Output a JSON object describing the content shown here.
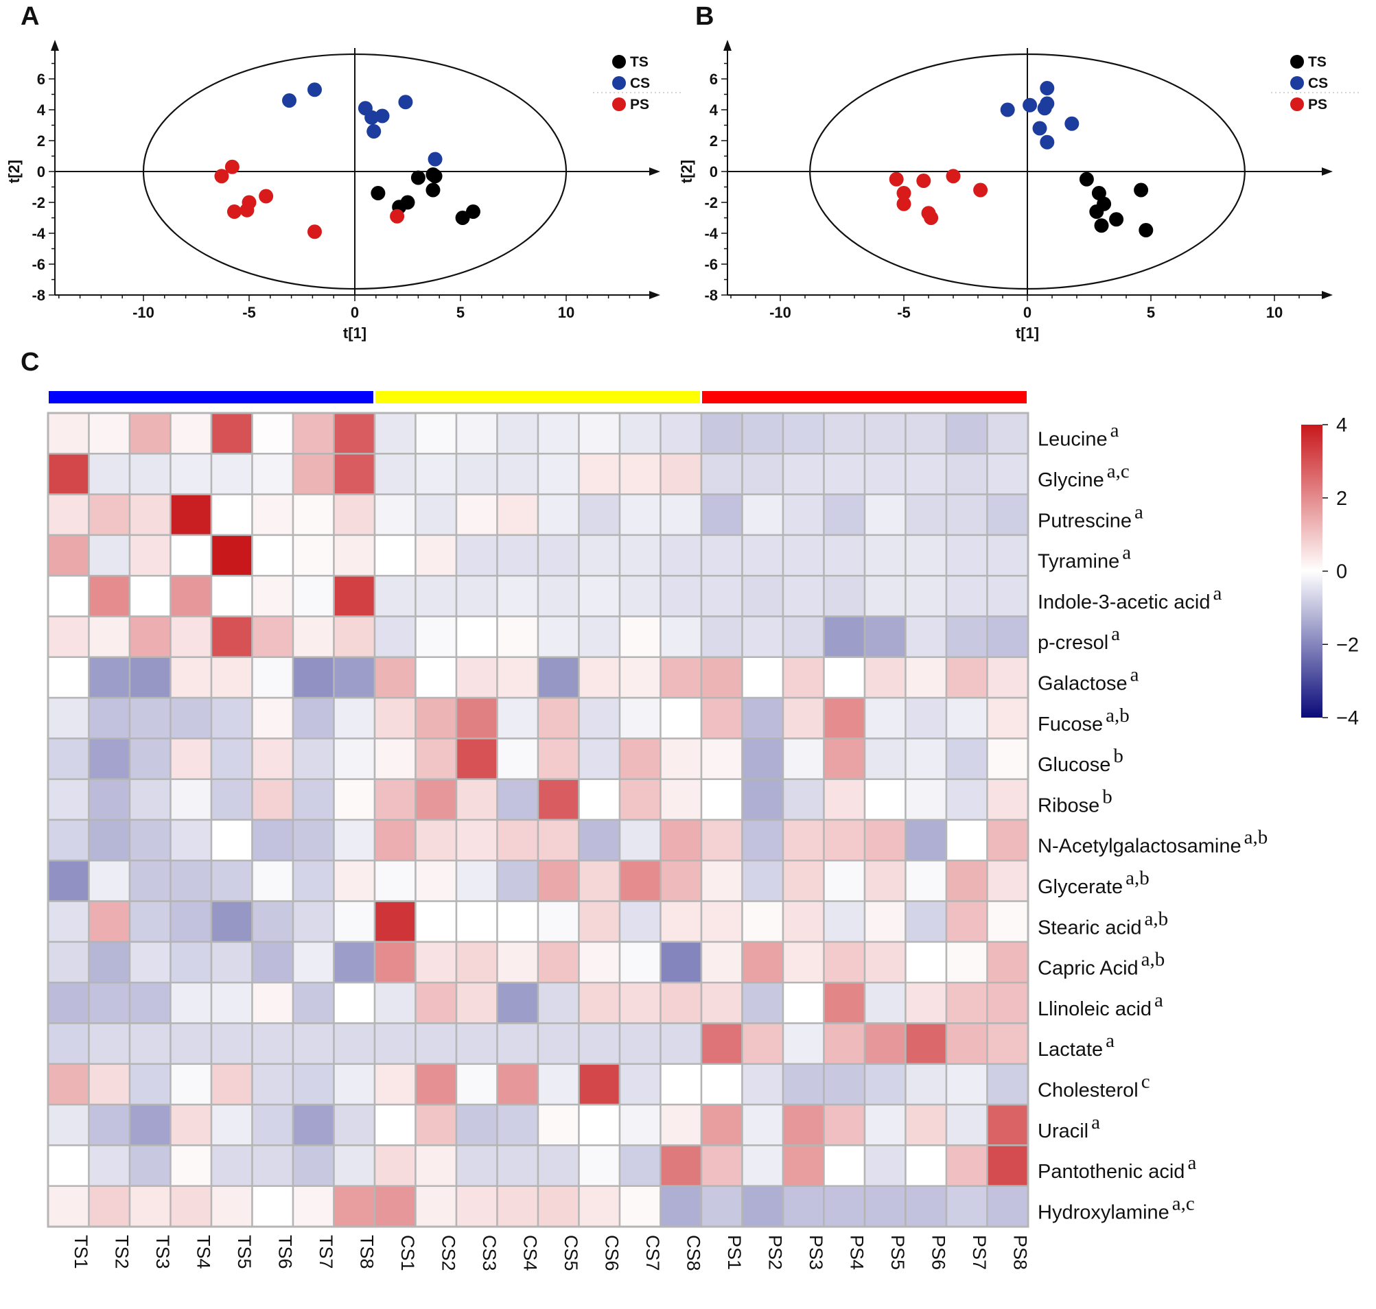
{
  "panels": {
    "A": "A",
    "B": "B",
    "C": "C"
  },
  "chart_data": [
    {
      "id": "A",
      "type": "scatter",
      "title": "",
      "xlabel": "t[1]",
      "ylabel": "t[2]",
      "xlim": [
        -14,
        14
      ],
      "ylim": [
        -8,
        7.5
      ],
      "xticks": [
        -10,
        -5,
        0,
        5,
        10
      ],
      "yticks": [
        6,
        4,
        2,
        0,
        -2,
        -4,
        -6,
        -8
      ],
      "ellipse": {
        "cx": 0,
        "cy": 0,
        "rx": 10,
        "ry": 7.6
      },
      "legend": {
        "position": "top-right",
        "entries": [
          "TS",
          "CS",
          "PS"
        ]
      },
      "series": [
        {
          "name": "TS",
          "color": "#000000",
          "points": [
            [
              1.1,
              -1.4
            ],
            [
              2.1,
              -2.3
            ],
            [
              2.5,
              -2.0
            ],
            [
              3.0,
              -0.4
            ],
            [
              3.7,
              -0.2
            ],
            [
              3.8,
              -0.3
            ],
            [
              3.7,
              -1.2
            ],
            [
              5.1,
              -3.0
            ],
            [
              5.6,
              -2.6
            ]
          ]
        },
        {
          "name": "CS",
          "color": "#1c3c9e",
          "points": [
            [
              -3.1,
              4.6
            ],
            [
              -1.9,
              5.3
            ],
            [
              0.5,
              4.1
            ],
            [
              0.8,
              3.5
            ],
            [
              1.3,
              3.6
            ],
            [
              0.9,
              2.6
            ],
            [
              2.4,
              4.5
            ],
            [
              3.8,
              0.8
            ]
          ]
        },
        {
          "name": "PS",
          "color": "#d81a1a",
          "points": [
            [
              -6.3,
              -0.3
            ],
            [
              -5.8,
              0.3
            ],
            [
              -5.7,
              -2.6
            ],
            [
              -5.1,
              -2.5
            ],
            [
              -5.0,
              -2.0
            ],
            [
              -4.2,
              -1.6
            ],
            [
              -1.9,
              -3.9
            ],
            [
              2.0,
              -2.9
            ]
          ]
        }
      ]
    },
    {
      "id": "B",
      "type": "scatter",
      "title": "",
      "xlabel": "t[1]",
      "ylabel": "t[2]",
      "xlim": [
        -12,
        12
      ],
      "ylim": [
        -8,
        7.5
      ],
      "xticks": [
        -10,
        -5,
        0,
        5,
        10
      ],
      "yticks": [
        6,
        4,
        2,
        0,
        -2,
        -4,
        -6,
        -8
      ],
      "ellipse": {
        "cx": 0,
        "cy": 0,
        "rx": 8.8,
        "ry": 7.6
      },
      "legend": {
        "position": "top-right",
        "entries": [
          "TS",
          "CS",
          "PS"
        ]
      },
      "series": [
        {
          "name": "TS",
          "color": "#000000",
          "points": [
            [
              2.4,
              -0.5
            ],
            [
              2.9,
              -1.4
            ],
            [
              3.1,
              -2.1
            ],
            [
              2.8,
              -2.6
            ],
            [
              3.0,
              -3.5
            ],
            [
              3.6,
              -3.1
            ],
            [
              4.6,
              -1.2
            ],
            [
              4.8,
              -3.8
            ]
          ]
        },
        {
          "name": "CS",
          "color": "#1c3c9e",
          "points": [
            [
              -0.8,
              4.0
            ],
            [
              0.1,
              4.3
            ],
            [
              0.7,
              4.1
            ],
            [
              0.8,
              4.4
            ],
            [
              0.8,
              5.4
            ],
            [
              0.5,
              2.8
            ],
            [
              0.8,
              1.9
            ],
            [
              1.8,
              3.1
            ]
          ]
        },
        {
          "name": "PS",
          "color": "#d81a1a",
          "points": [
            [
              -5.3,
              -0.5
            ],
            [
              -5.0,
              -1.4
            ],
            [
              -5.0,
              -2.1
            ],
            [
              -4.2,
              -0.6
            ],
            [
              -4.0,
              -2.7
            ],
            [
              -3.9,
              -3.0
            ],
            [
              -3.0,
              -0.3
            ],
            [
              -1.9,
              -1.2
            ]
          ]
        }
      ]
    },
    {
      "id": "C",
      "type": "heatmap",
      "title": "",
      "columns": [
        "TS1",
        "TS2",
        "TS3",
        "TS4",
        "TS5",
        "TS6",
        "TS7",
        "TS8",
        "CS1",
        "CS2",
        "CS3",
        "CS4",
        "CS5",
        "CS6",
        "CS7",
        "CS8",
        "PS1",
        "PS2",
        "PS3",
        "PS4",
        "PS5",
        "PS6",
        "PS7",
        "PS8"
      ],
      "groups": [
        {
          "name": "TS",
          "span": 8,
          "color": "#0000ff"
        },
        {
          "name": "CS",
          "span": 8,
          "color": "#ffff00"
        },
        {
          "name": "PS",
          "span": 8,
          "color": "#ff0000"
        }
      ],
      "rows": [
        {
          "label": "Leucine",
          "sup": "a"
        },
        {
          "label": "Glycine",
          "sup": "a,c"
        },
        {
          "label": "Putrescine",
          "sup": "a"
        },
        {
          "label": "Tyramine",
          "sup": "a"
        },
        {
          "label": "Indole-3-acetic acid",
          "sup": "a"
        },
        {
          "label": "p-cresol",
          "sup": "a"
        },
        {
          "label": "Galactose",
          "sup": "a"
        },
        {
          "label": "Fucose",
          "sup": "a,b"
        },
        {
          "label": "Glucose",
          "sup": "b"
        },
        {
          "label": "Ribose",
          "sup": "b"
        },
        {
          "label": "N-Acetylgalactosamine",
          "sup": "a,b"
        },
        {
          "label": "Glycerate",
          "sup": "a,b"
        },
        {
          "label": "Stearic acid",
          "sup": "a,b"
        },
        {
          "label": "Capric Acid",
          "sup": "a,b"
        },
        {
          "label": "Llinoleic acid",
          "sup": "a"
        },
        {
          "label": "Lactate",
          "sup": "a"
        },
        {
          "label": "Cholesterol",
          "sup": "c"
        },
        {
          "label": "Uracil",
          "sup": "a"
        },
        {
          "label": "Pantothenic acid",
          "sup": "a"
        },
        {
          "label": "Hydroxylamine",
          "sup": "a,c"
        }
      ],
      "values": [
        [
          0.3,
          0.2,
          1.3,
          0.2,
          3.0,
          0.05,
          1.2,
          2.8,
          -0.4,
          -0.1,
          -0.2,
          -0.4,
          -0.3,
          -0.2,
          -0.4,
          -0.5,
          -0.9,
          -0.8,
          -0.7,
          -0.6,
          -0.6,
          -0.6,
          -0.9,
          -0.6
        ],
        [
          3.2,
          -0.4,
          -0.4,
          -0.3,
          -0.3,
          -0.2,
          1.3,
          2.8,
          -0.4,
          -0.3,
          -0.4,
          -0.4,
          -0.3,
          0.4,
          0.4,
          0.6,
          -0.6,
          -0.6,
          -0.5,
          -0.5,
          -0.5,
          -0.5,
          -0.6,
          -0.5
        ],
        [
          0.5,
          1.0,
          0.6,
          3.9,
          0.0,
          0.2,
          0.1,
          0.6,
          -0.2,
          -0.4,
          0.2,
          0.4,
          -0.3,
          -0.6,
          -0.3,
          -0.3,
          -1.0,
          -0.3,
          -0.5,
          -0.8,
          -0.3,
          -0.6,
          -0.6,
          -0.8
        ],
        [
          1.5,
          -0.4,
          0.5,
          0.0,
          4.2,
          0.0,
          0.1,
          0.3,
          0.0,
          0.3,
          -0.5,
          -0.5,
          -0.5,
          -0.4,
          -0.4,
          -0.5,
          -0.5,
          -0.5,
          -0.5,
          -0.5,
          -0.4,
          -0.4,
          -0.5,
          -0.5
        ],
        [
          0.0,
          2.0,
          0.0,
          1.8,
          0.0,
          0.2,
          -0.1,
          3.3,
          -0.4,
          -0.4,
          -0.4,
          -0.3,
          -0.4,
          -0.3,
          -0.4,
          -0.5,
          -0.5,
          -0.6,
          -0.5,
          -0.6,
          -0.4,
          -0.4,
          -0.5,
          -0.5
        ],
        [
          0.5,
          0.3,
          1.4,
          0.5,
          3.0,
          1.1,
          0.3,
          0.7,
          -0.5,
          -0.1,
          0.0,
          0.1,
          -0.3,
          -0.4,
          0.1,
          -0.3,
          -0.6,
          -0.5,
          -0.6,
          -1.6,
          -1.4,
          -0.5,
          -0.9,
          -1.0
        ],
        [
          0.0,
          -1.6,
          -1.7,
          0.4,
          0.4,
          -0.1,
          -1.8,
          -1.6,
          1.3,
          0.0,
          0.5,
          0.4,
          -1.7,
          0.4,
          0.3,
          1.2,
          1.3,
          0.0,
          0.8,
          0.0,
          0.6,
          0.3,
          1.0,
          0.5
        ],
        [
          -0.4,
          -1.0,
          -0.9,
          -0.9,
          -0.7,
          0.2,
          -1.0,
          -0.3,
          0.6,
          1.3,
          2.2,
          -0.3,
          1.0,
          -0.5,
          -0.2,
          0.0,
          1.1,
          -1.1,
          0.6,
          2.0,
          -0.3,
          -0.5,
          -0.3,
          0.4
        ],
        [
          -0.7,
          -1.5,
          -0.9,
          0.5,
          -0.7,
          0.5,
          -0.6,
          -0.2,
          0.2,
          1.0,
          3.0,
          -0.1,
          0.9,
          -0.5,
          1.2,
          0.3,
          0.2,
          -1.3,
          -0.2,
          1.6,
          -0.4,
          -0.3,
          -0.7,
          0.1
        ],
        [
          -0.5,
          -1.1,
          -0.6,
          -0.2,
          -0.8,
          0.8,
          -0.8,
          0.1,
          1.1,
          1.8,
          0.6,
          -1.0,
          2.8,
          0.0,
          1.0,
          0.3,
          0.0,
          -1.3,
          -0.6,
          0.5,
          0.0,
          -0.2,
          -0.5,
          0.5
        ],
        [
          -0.7,
          -1.2,
          -0.9,
          -0.5,
          0.0,
          -1.0,
          -0.9,
          -0.3,
          1.4,
          0.6,
          0.5,
          0.8,
          0.8,
          -1.1,
          -0.4,
          1.4,
          0.8,
          -1.0,
          0.8,
          0.9,
          1.1,
          -1.3,
          0.0,
          1.2
        ],
        [
          -1.8,
          -0.3,
          -0.9,
          -0.9,
          -0.8,
          -0.1,
          -0.7,
          0.3,
          -0.1,
          0.2,
          -0.3,
          -0.9,
          1.5,
          0.7,
          2.0,
          1.2,
          0.3,
          -0.7,
          0.7,
          -0.1,
          0.6,
          -0.1,
          1.3,
          0.5
        ],
        [
          -0.5,
          1.4,
          -0.8,
          -1.0,
          -1.7,
          -0.9,
          -0.6,
          -0.1,
          3.5,
          0.0,
          0.0,
          0.0,
          -0.1,
          0.7,
          -0.5,
          0.4,
          0.4,
          0.1,
          0.5,
          -0.4,
          0.2,
          -0.7,
          1.1,
          0.1
        ],
        [
          -0.6,
          -1.2,
          -0.5,
          -0.7,
          -0.6,
          -1.1,
          -0.3,
          -1.6,
          2.0,
          0.5,
          0.7,
          0.3,
          1.0,
          0.2,
          -0.1,
          -2.0,
          0.3,
          1.6,
          0.4,
          0.9,
          0.6,
          0.0,
          0.1,
          1.2
        ],
        [
          -1.1,
          -1.0,
          -1.0,
          -0.3,
          -0.3,
          0.2,
          -0.9,
          0.0,
          -0.4,
          1.1,
          0.6,
          -1.6,
          -0.6,
          0.7,
          0.6,
          0.8,
          0.6,
          -0.9,
          0.0,
          2.1,
          -0.4,
          0.5,
          1.0,
          1.1
        ],
        [
          -0.7,
          -0.6,
          -0.6,
          -0.6,
          -0.6,
          -0.6,
          -0.6,
          -0.6,
          -0.6,
          -0.6,
          -0.6,
          -0.6,
          -0.6,
          -0.6,
          -0.6,
          -0.6,
          2.4,
          1.0,
          -0.3,
          1.2,
          1.8,
          2.6,
          1.2,
          1.0
        ],
        [
          1.3,
          0.6,
          -0.7,
          -0.1,
          0.8,
          -0.6,
          -0.7,
          -0.3,
          0.4,
          1.9,
          -0.1,
          1.8,
          -0.3,
          3.2,
          -0.5,
          0.0,
          0.0,
          -0.5,
          -0.9,
          -0.9,
          -0.7,
          -0.4,
          -0.3,
          -0.8
        ],
        [
          -0.4,
          -1.0,
          -1.5,
          0.6,
          -0.3,
          -0.7,
          -1.5,
          -0.6,
          0.0,
          1.0,
          -0.9,
          -0.8,
          0.1,
          0.0,
          -0.2,
          0.3,
          1.7,
          -0.3,
          1.8,
          1.1,
          -0.3,
          0.7,
          -0.4,
          2.7
        ],
        [
          0.0,
          -0.5,
          -0.9,
          0.1,
          -0.6,
          -0.6,
          -0.9,
          -0.4,
          0.6,
          0.3,
          -0.6,
          -0.6,
          -0.6,
          -0.1,
          -0.8,
          2.3,
          1.1,
          -0.3,
          1.7,
          0.0,
          -0.5,
          0.0,
          1.1,
          3.1
        ],
        [
          0.3,
          0.8,
          0.4,
          0.6,
          0.3,
          0.0,
          0.2,
          1.7,
          1.8,
          0.3,
          0.5,
          0.6,
          0.7,
          0.4,
          0.1,
          -1.3,
          -0.9,
          -1.3,
          -1.0,
          -1.0,
          -1.0,
          -1.0,
          -0.8,
          -1.0
        ]
      ],
      "colorbar": {
        "min": -4,
        "max": 4,
        "ticks": [
          "4",
          "2",
          "0",
          "−2",
          "−4"
        ],
        "low": "#0a0a7a",
        "mid": "#ffffff",
        "high": "#c8181c"
      }
    }
  ]
}
